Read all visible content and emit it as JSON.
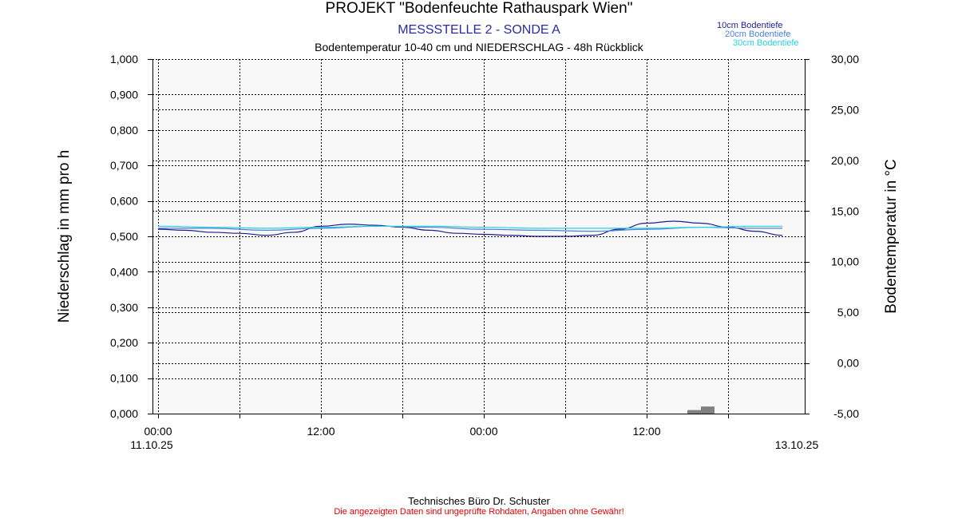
{
  "header": {
    "title": "PROJEKT \"Bodenfeuchte Rathauspark Wien\"",
    "subtitle": "MESSSTELLE 2 - SONDE A",
    "subtitle2": "Bodentemperatur 10-40 cm und NIEDERSCHLAG - 48h Rückblick"
  },
  "footer": {
    "line1": "Technisches Büro Dr. Schuster",
    "line2": "Die angezeigten Daten sind ungeprüfte Rohdaten, Angaben ohne Gewähr!"
  },
  "colors": {
    "plot_bg": "#f8f8f8",
    "series_10cm": "#1f1f8f",
    "series_20cm": "#4f7fd8",
    "series_30cm": "#22d4e4",
    "precip_bar": "#808080",
    "subtitle": "#2a2aa8",
    "disclaimer": "#e00000"
  },
  "chart_data": {
    "type": "line",
    "xlabel": "",
    "ylabel_left": "Niederschlag in mm pro h",
    "ylabel_right": "Bodentemperatur in °C",
    "ylim_left": [
      0,
      1
    ],
    "ylim_right": [
      -5,
      30
    ],
    "x_unit": "hours since 11.10.25 00:00",
    "xlim": [
      0,
      46
    ],
    "x_ticks": [
      {
        "x": 0,
        "label": "00:00",
        "sublabel": "11.10.25"
      },
      {
        "x": 12,
        "label": "12:00",
        "sublabel": ""
      },
      {
        "x": 24,
        "label": "00:00",
        "sublabel": ""
      },
      {
        "x": 36,
        "label": "12:00",
        "sublabel": ""
      },
      {
        "x": 46,
        "label": "",
        "sublabel": "13.10.25"
      }
    ],
    "y_ticks_left": [
      "0,000",
      "0,100",
      "0,200",
      "0,300",
      "0,400",
      "0,500",
      "0,600",
      "0,700",
      "0,800",
      "0,900",
      "1,000"
    ],
    "y_ticks_right": [
      "-5,00",
      "0,00",
      "5,00",
      "10,00",
      "15,00",
      "20,00",
      "25,00",
      "30,00"
    ],
    "grid": true,
    "legend_position": "top-right",
    "series": [
      {
        "name": "10cm Bodentiefe",
        "axis": "right",
        "x": [
          0,
          2,
          4,
          6,
          8,
          10,
          12,
          14,
          16,
          18,
          20,
          22,
          24,
          26,
          28,
          30,
          32,
          34,
          36,
          38,
          40,
          42,
          44,
          46
        ],
        "y": [
          13.2,
          13.1,
          12.9,
          12.8,
          12.6,
          12.9,
          13.5,
          13.7,
          13.6,
          13.4,
          13.1,
          12.8,
          12.7,
          12.6,
          12.5,
          12.5,
          12.6,
          13.2,
          13.8,
          14.0,
          13.8,
          13.4,
          13.0,
          12.6
        ]
      },
      {
        "name": "20cm Bodentiefe",
        "axis": "right",
        "x": [
          0,
          4,
          8,
          12,
          16,
          20,
          24,
          28,
          32,
          36,
          40,
          44,
          46
        ],
        "y": [
          13.3,
          13.3,
          13.1,
          13.3,
          13.5,
          13.4,
          13.2,
          13.1,
          13.0,
          13.2,
          13.4,
          13.3,
          13.3
        ]
      },
      {
        "name": "30cm Bodentiefe",
        "axis": "right",
        "x": [
          0,
          4,
          8,
          12,
          16,
          20,
          24,
          28,
          32,
          36,
          40,
          44,
          46
        ],
        "y": [
          13.5,
          13.4,
          13.3,
          13.4,
          13.5,
          13.5,
          13.4,
          13.3,
          13.3,
          13.3,
          13.4,
          13.5,
          13.5
        ]
      },
      {
        "name": "Niederschlag",
        "axis": "left",
        "kind": "bar",
        "bar_width": 1,
        "x": [
          39,
          40
        ],
        "y": [
          0.01,
          0.02
        ]
      }
    ]
  }
}
